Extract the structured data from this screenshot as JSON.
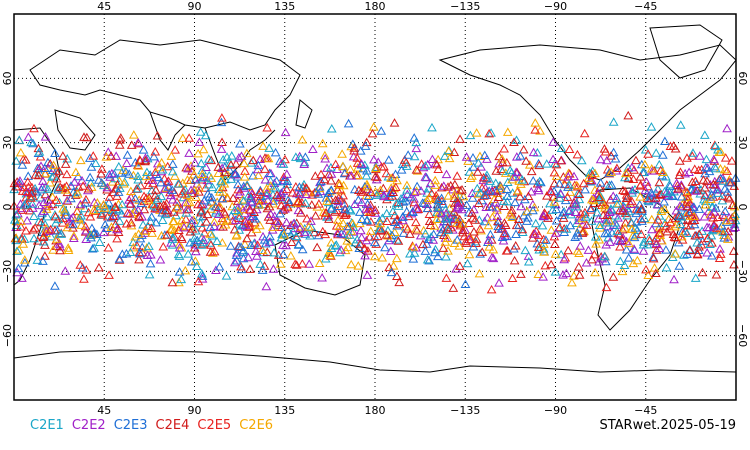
{
  "map": {
    "lon_range": [
      0,
      360
    ],
    "lat_range": [
      -90,
      90
    ],
    "center_lon": 180,
    "grid": "dotted",
    "marker": "triangle-outline",
    "lon_ticks": [
      {
        "lon": 45,
        "label": "45"
      },
      {
        "lon": 90,
        "label": "90"
      },
      {
        "lon": 135,
        "label": "135"
      },
      {
        "lon": 180,
        "label": "180"
      },
      {
        "lon": 225,
        "label": "−135"
      },
      {
        "lon": 270,
        "label": "−90"
      },
      {
        "lon": 315,
        "label": "−45"
      }
    ],
    "lat_ticks": [
      {
        "lat": 60,
        "label": "60"
      },
      {
        "lat": 30,
        "label": "30"
      },
      {
        "lat": 0,
        "label": "0"
      },
      {
        "lat": -30,
        "label": "−30"
      },
      {
        "lat": -60,
        "label": "−60"
      }
    ],
    "obs_lat_band": [
      -45,
      45
    ]
  },
  "legend": {
    "items": [
      {
        "label": "C2E1",
        "color": "#1aa6c8"
      },
      {
        "label": "C2E2",
        "color": "#a020c8"
      },
      {
        "label": "C2E3",
        "color": "#1f6fd6"
      },
      {
        "label": "C2E4",
        "color": "#d01a1a"
      },
      {
        "label": "C2E5",
        "color": "#e8221f"
      },
      {
        "label": "C2E6",
        "color": "#f5a800"
      }
    ]
  },
  "footer": {
    "stamp": "STARwet.2025-05-19"
  }
}
